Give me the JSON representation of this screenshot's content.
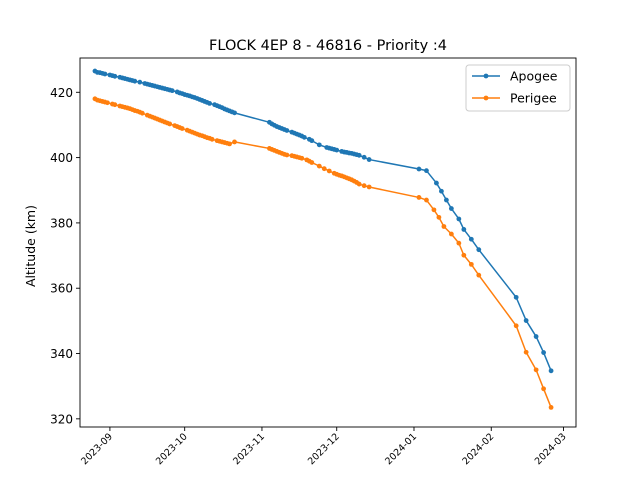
{
  "chart_data": {
    "type": "line",
    "title": "FLOCK 4EP 8 - 46816 - Priority :4",
    "xlabel": "",
    "ylabel": "Altitude (km)",
    "x_type": "date",
    "xlim": [
      "2023-08-20",
      "2024-03-06"
    ],
    "ylim": [
      317.5,
      430.5
    ],
    "x_ticks": [
      "2023-09",
      "2023-10",
      "2023-11",
      "2023-12",
      "2024-01",
      "2024-02",
      "2024-03"
    ],
    "y_ticks": [
      320,
      340,
      360,
      380,
      400,
      420
    ],
    "grid": false,
    "legend_position": "upper right",
    "series": [
      {
        "name": "Apogee",
        "color": "#1f77b4",
        "marker": "circle",
        "points": [
          [
            "2023-08-26",
            426.5
          ],
          [
            "2023-08-27",
            426.1
          ],
          [
            "2023-08-28",
            426.0
          ],
          [
            "2023-08-29",
            425.8
          ],
          [
            "2023-08-30",
            425.6
          ],
          [
            "2023-09-01",
            425.3
          ],
          [
            "2023-09-02",
            425.1
          ],
          [
            "2023-09-03",
            424.9
          ],
          [
            "2023-09-05",
            424.6
          ],
          [
            "2023-09-06",
            424.4
          ],
          [
            "2023-09-07",
            424.2
          ],
          [
            "2023-09-08",
            424.0
          ],
          [
            "2023-09-09",
            423.8
          ],
          [
            "2023-09-10",
            423.6
          ],
          [
            "2023-09-11",
            423.4
          ],
          [
            "2023-09-13",
            423.1
          ],
          [
            "2023-09-15",
            422.7
          ],
          [
            "2023-09-16",
            422.5
          ],
          [
            "2023-09-17",
            422.3
          ],
          [
            "2023-09-18",
            422.1
          ],
          [
            "2023-09-19",
            421.9
          ],
          [
            "2023-09-20",
            421.7
          ],
          [
            "2023-09-21",
            421.5
          ],
          [
            "2023-09-22",
            421.3
          ],
          [
            "2023-09-23",
            421.1
          ],
          [
            "2023-09-24",
            420.9
          ],
          [
            "2023-09-25",
            420.7
          ],
          [
            "2023-09-26",
            420.5
          ],
          [
            "2023-09-28",
            420.1
          ],
          [
            "2023-09-29",
            419.8
          ],
          [
            "2023-09-30",
            419.6
          ],
          [
            "2023-10-01",
            419.3
          ],
          [
            "2023-10-02",
            419.1
          ],
          [
            "2023-10-03",
            418.9
          ],
          [
            "2023-10-04",
            418.6
          ],
          [
            "2023-10-05",
            418.4
          ],
          [
            "2023-10-06",
            418.1
          ],
          [
            "2023-10-07",
            417.8
          ],
          [
            "2023-10-08",
            417.5
          ],
          [
            "2023-10-09",
            417.2
          ],
          [
            "2023-10-10",
            416.9
          ],
          [
            "2023-10-11",
            416.6
          ],
          [
            "2023-10-13",
            416.2
          ],
          [
            "2023-10-14",
            415.9
          ],
          [
            "2023-10-15",
            415.6
          ],
          [
            "2023-10-16",
            415.3
          ],
          [
            "2023-10-17",
            414.9
          ],
          [
            "2023-10-18",
            414.6
          ],
          [
            "2023-10-19",
            414.3
          ],
          [
            "2023-10-20",
            414.0
          ],
          [
            "2023-10-21",
            413.7
          ],
          [
            "2023-11-04",
            410.8
          ],
          [
            "2023-11-05",
            410.3
          ],
          [
            "2023-11-06",
            409.9
          ],
          [
            "2023-11-07",
            409.5
          ],
          [
            "2023-11-08",
            409.2
          ],
          [
            "2023-11-09",
            408.9
          ],
          [
            "2023-11-10",
            408.6
          ],
          [
            "2023-11-11",
            408.3
          ],
          [
            "2023-11-13",
            407.8
          ],
          [
            "2023-11-14",
            407.5
          ],
          [
            "2023-11-15",
            407.2
          ],
          [
            "2023-11-16",
            406.9
          ],
          [
            "2023-11-17",
            406.6
          ],
          [
            "2023-11-18",
            406.2
          ],
          [
            "2023-11-20",
            405.6
          ],
          [
            "2023-11-21",
            405.2
          ],
          [
            "2023-11-24",
            403.9
          ],
          [
            "2023-11-27",
            403.1
          ],
          [
            "2023-11-28",
            402.9
          ],
          [
            "2023-11-29",
            402.7
          ],
          [
            "2023-11-30",
            402.5
          ],
          [
            "2023-12-01",
            402.3
          ],
          [
            "2023-12-03",
            401.9
          ],
          [
            "2023-12-04",
            401.7
          ],
          [
            "2023-12-05",
            401.6
          ],
          [
            "2023-12-06",
            401.4
          ],
          [
            "2023-12-07",
            401.3
          ],
          [
            "2023-12-08",
            401.1
          ],
          [
            "2023-12-09",
            400.9
          ],
          [
            "2023-12-10",
            400.7
          ],
          [
            "2023-12-12",
            400.1
          ],
          [
            "2023-12-14",
            399.4
          ],
          [
            "2024-01-03",
            396.5
          ],
          [
            "2024-01-06",
            396.0
          ],
          [
            "2024-01-10",
            392.2
          ],
          [
            "2024-01-12",
            389.7
          ],
          [
            "2024-01-14",
            387.0
          ],
          [
            "2024-01-16",
            384.4
          ],
          [
            "2024-01-19",
            381.2
          ],
          [
            "2024-01-21",
            378.0
          ],
          [
            "2024-01-24",
            375.0
          ],
          [
            "2024-01-27",
            371.8
          ],
          [
            "2024-02-11",
            357.2
          ],
          [
            "2024-02-15",
            350.1
          ],
          [
            "2024-02-19",
            345.2
          ],
          [
            "2024-02-22",
            340.3
          ],
          [
            "2024-02-25",
            334.7
          ]
        ]
      },
      {
        "name": "Perigee",
        "color": "#ff7f0e",
        "marker": "circle",
        "points": [
          [
            "2023-08-26",
            418.0
          ],
          [
            "2023-08-27",
            417.6
          ],
          [
            "2023-08-28",
            417.4
          ],
          [
            "2023-08-29",
            417.2
          ],
          [
            "2023-08-30",
            417.0
          ],
          [
            "2023-08-31",
            416.8
          ],
          [
            "2023-09-02",
            416.4
          ],
          [
            "2023-09-03",
            416.2
          ],
          [
            "2023-09-05",
            415.8
          ],
          [
            "2023-09-06",
            415.6
          ],
          [
            "2023-09-07",
            415.4
          ],
          [
            "2023-09-08",
            415.2
          ],
          [
            "2023-09-09",
            415.0
          ],
          [
            "2023-09-10",
            414.7
          ],
          [
            "2023-09-11",
            414.4
          ],
          [
            "2023-09-12",
            414.2
          ],
          [
            "2023-09-13",
            413.9
          ],
          [
            "2023-09-14",
            413.6
          ],
          [
            "2023-09-16",
            413.0
          ],
          [
            "2023-09-17",
            412.7
          ],
          [
            "2023-09-18",
            412.4
          ],
          [
            "2023-09-19",
            412.1
          ],
          [
            "2023-09-20",
            411.8
          ],
          [
            "2023-09-21",
            411.5
          ],
          [
            "2023-09-22",
            411.2
          ],
          [
            "2023-09-23",
            410.9
          ],
          [
            "2023-09-24",
            410.6
          ],
          [
            "2023-09-25",
            410.3
          ],
          [
            "2023-09-27",
            409.8
          ],
          [
            "2023-09-28",
            409.5
          ],
          [
            "2023-09-29",
            409.2
          ],
          [
            "2023-09-30",
            408.9
          ],
          [
            "2023-10-02",
            408.4
          ],
          [
            "2023-10-03",
            408.1
          ],
          [
            "2023-10-04",
            407.8
          ],
          [
            "2023-10-05",
            407.5
          ],
          [
            "2023-10-06",
            407.2
          ],
          [
            "2023-10-07",
            406.9
          ],
          [
            "2023-10-08",
            406.7
          ],
          [
            "2023-10-09",
            406.4
          ],
          [
            "2023-10-10",
            406.1
          ],
          [
            "2023-10-11",
            405.9
          ],
          [
            "2023-10-12",
            405.6
          ],
          [
            "2023-10-14",
            405.2
          ],
          [
            "2023-10-15",
            405.0
          ],
          [
            "2023-10-16",
            404.8
          ],
          [
            "2023-10-17",
            404.6
          ],
          [
            "2023-10-18",
            404.4
          ],
          [
            "2023-10-19",
            404.2
          ],
          [
            "2023-10-21",
            404.8
          ],
          [
            "2023-11-04",
            402.8
          ],
          [
            "2023-11-05",
            402.5
          ],
          [
            "2023-11-06",
            402.2
          ],
          [
            "2023-11-07",
            401.9
          ],
          [
            "2023-11-08",
            401.6
          ],
          [
            "2023-11-09",
            401.3
          ],
          [
            "2023-11-10",
            401.0
          ],
          [
            "2023-11-11",
            400.8
          ],
          [
            "2023-11-13",
            400.6
          ],
          [
            "2023-11-14",
            400.4
          ],
          [
            "2023-11-15",
            400.2
          ],
          [
            "2023-11-16",
            400.0
          ],
          [
            "2023-11-17",
            399.8
          ],
          [
            "2023-11-19",
            399.3
          ],
          [
            "2023-11-20",
            398.9
          ],
          [
            "2023-11-21",
            398.5
          ],
          [
            "2023-11-24",
            397.4
          ],
          [
            "2023-11-26",
            396.6
          ],
          [
            "2023-11-28",
            395.9
          ],
          [
            "2023-11-30",
            395.2
          ],
          [
            "2023-12-01",
            394.9
          ],
          [
            "2023-12-02",
            394.6
          ],
          [
            "2023-12-03",
            394.4
          ],
          [
            "2023-12-04",
            394.1
          ],
          [
            "2023-12-05",
            393.8
          ],
          [
            "2023-12-06",
            393.5
          ],
          [
            "2023-12-07",
            393.2
          ],
          [
            "2023-12-08",
            392.8
          ],
          [
            "2023-12-09",
            392.4
          ],
          [
            "2023-12-10",
            391.9
          ],
          [
            "2023-12-12",
            391.4
          ],
          [
            "2023-12-14",
            391.0
          ],
          [
            "2024-01-03",
            387.8
          ],
          [
            "2024-01-06",
            387.0
          ],
          [
            "2024-01-09",
            384.0
          ],
          [
            "2024-01-11",
            381.7
          ],
          [
            "2024-01-13",
            378.9
          ],
          [
            "2024-01-16",
            376.6
          ],
          [
            "2024-01-19",
            373.8
          ],
          [
            "2024-01-21",
            370.1
          ],
          [
            "2024-01-24",
            367.3
          ],
          [
            "2024-01-27",
            364.0
          ],
          [
            "2024-02-11",
            348.5
          ],
          [
            "2024-02-15",
            340.4
          ],
          [
            "2024-02-19",
            335.0
          ],
          [
            "2024-02-22",
            329.2
          ],
          [
            "2024-02-25",
            323.5
          ]
        ]
      }
    ]
  }
}
